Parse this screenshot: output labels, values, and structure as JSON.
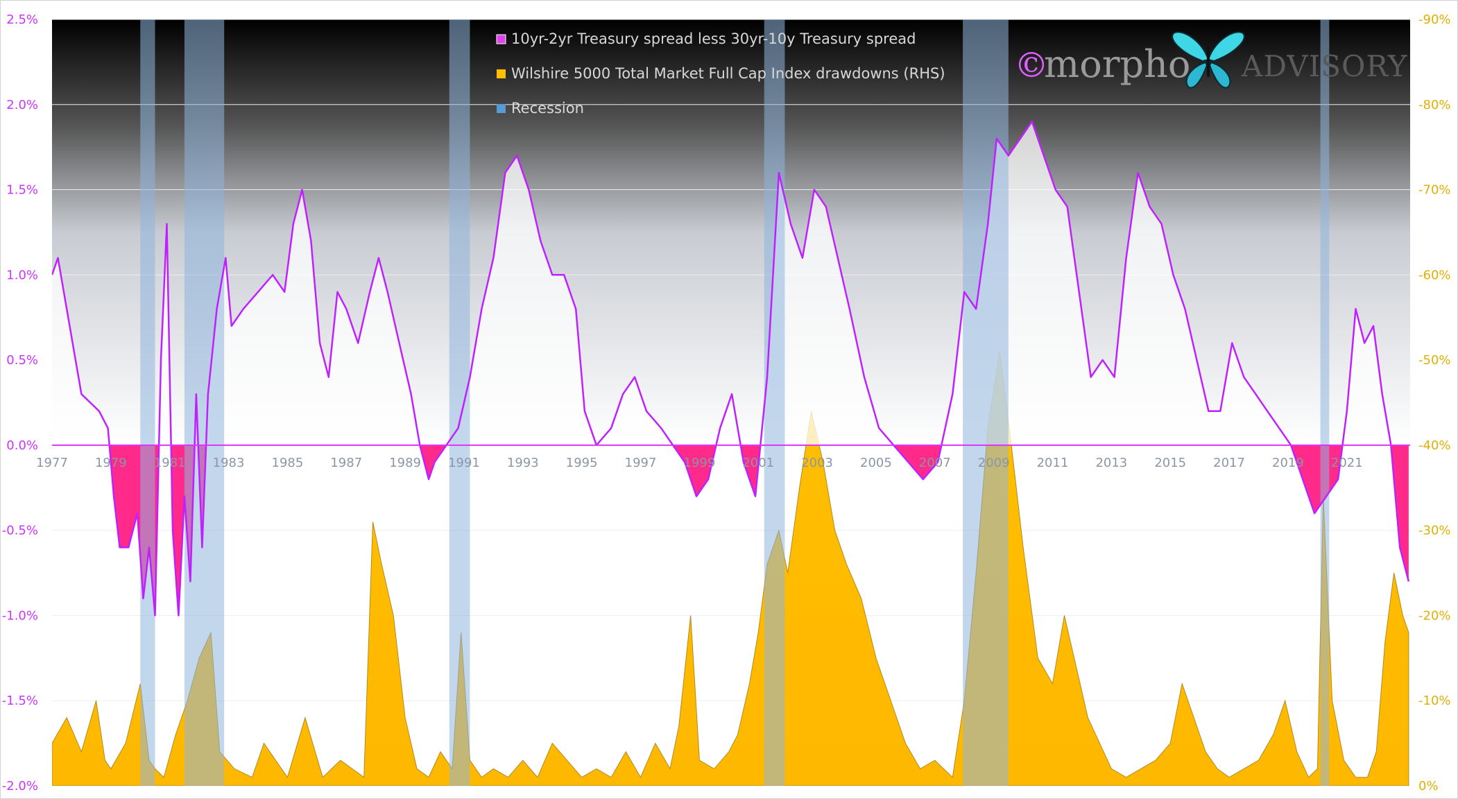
{
  "chart_data": {
    "type": "area",
    "title": "",
    "watermark": {
      "copyright": "©",
      "brand": "morpho",
      "suffix": "ADVISORY"
    },
    "legend": {
      "placement": "top-center",
      "items": [
        {
          "label": "10yr-2yr Treasury spread less 30yr-10y Treasury spread",
          "color": "#dd44ee"
        },
        {
          "label": "Wilshire 5000 Total Market Full Cap Index drawdowns (RHS)",
          "color": "#ffbf00"
        },
        {
          "label": "Recession",
          "color": "#5b9bd5"
        }
      ]
    },
    "x_axis": {
      "range": [
        1977,
        2023.15
      ],
      "tick_labels": [
        "1977",
        "1979",
        "1981",
        "1983",
        "1985",
        "1987",
        "1989",
        "1991",
        "1993",
        "1995",
        "1997",
        "1999",
        "2001",
        "2003",
        "2005",
        "2007",
        "2009",
        "2011",
        "2013",
        "2015",
        "2017",
        "2019",
        "2021"
      ]
    },
    "y_left": {
      "range": [
        -2.0,
        2.5
      ],
      "tick_labels": [
        "2.5%",
        "2.0%",
        "1.5%",
        "1.0%",
        "0.5%",
        "0.0%",
        "-0.5%",
        "-1.0%",
        "-1.5%",
        "-2.0%"
      ]
    },
    "y_right": {
      "range": [
        0,
        -90
      ],
      "tick_labels": [
        "-90%",
        "-80%",
        "-70%",
        "-60%",
        "-50%",
        "-40%",
        "-30%",
        "-20%",
        "-10%",
        "0%"
      ]
    },
    "grid": true,
    "colors": {
      "spread_line": "#c020ff",
      "negative_fill": "#ff2a8a",
      "positive_fill": "#ffffff",
      "drawdown_fill": "#ffbf00",
      "recession": "#8fb4dc",
      "zero_line": "#dd33ff"
    },
    "recessions": [
      [
        1980.0,
        1980.5
      ],
      [
        1981.5,
        1982.85
      ],
      [
        1990.5,
        1991.2
      ],
      [
        2001.2,
        2001.9
      ],
      [
        2007.95,
        2009.5
      ],
      [
        2020.1,
        2020.4
      ]
    ],
    "series": [
      {
        "name": "10yr-2yr Treasury spread less 30yr-10y Treasury spread",
        "axis": "left",
        "x": [
          1977.0,
          1977.2,
          1977.5,
          1977.8,
          1978.0,
          1978.3,
          1978.6,
          1978.9,
          1979.1,
          1979.3,
          1979.6,
          1979.9,
          1980.1,
          1980.3,
          1980.5,
          1980.7,
          1980.9,
          1981.1,
          1981.3,
          1981.5,
          1981.7,
          1981.9,
          1982.1,
          1982.3,
          1982.6,
          1982.9,
          1983.1,
          1983.5,
          1984.0,
          1984.5,
          1984.9,
          1985.2,
          1985.5,
          1985.8,
          1986.1,
          1986.4,
          1986.7,
          1987.0,
          1987.4,
          1987.8,
          1988.1,
          1988.4,
          1988.8,
          1989.2,
          1989.5,
          1989.8,
          1990.0,
          1990.4,
          1990.8,
          1991.2,
          1991.6,
          1992.0,
          1992.4,
          1992.8,
          1993.2,
          1993.6,
          1994.0,
          1994.4,
          1994.8,
          1995.1,
          1995.5,
          1996.0,
          1996.4,
          1996.8,
          1997.2,
          1997.7,
          1998.1,
          1998.5,
          1998.9,
          1999.3,
          1999.7,
          2000.1,
          2000.5,
          2000.9,
          2001.3,
          2001.7,
          2002.1,
          2002.5,
          2002.9,
          2003.3,
          2003.7,
          2004.1,
          2004.6,
          2005.1,
          2005.6,
          2006.1,
          2006.6,
          2007.1,
          2007.6,
          2008.0,
          2008.4,
          2008.8,
          2009.1,
          2009.5,
          2009.9,
          2010.3,
          2010.7,
          2011.1,
          2011.5,
          2011.9,
          2012.3,
          2012.7,
          2013.1,
          2013.5,
          2013.9,
          2014.3,
          2014.7,
          2015.1,
          2015.5,
          2015.9,
          2016.3,
          2016.7,
          2017.1,
          2017.5,
          2017.9,
          2018.3,
          2018.7,
          2019.1,
          2019.5,
          2019.9,
          2020.3,
          2020.7,
          2021.0,
          2021.3,
          2021.6,
          2021.9,
          2022.2,
          2022.5,
          2022.8,
          2023.1
        ],
        "y": [
          1.0,
          1.1,
          0.8,
          0.5,
          0.3,
          0.25,
          0.2,
          0.1,
          -0.3,
          -0.6,
          -0.6,
          -0.4,
          -0.9,
          -0.6,
          -1.0,
          0.5,
          1.3,
          -0.5,
          -1.0,
          -0.3,
          -0.8,
          0.3,
          -0.6,
          0.3,
          0.8,
          1.1,
          0.7,
          0.8,
          0.9,
          1.0,
          0.9,
          1.3,
          1.5,
          1.2,
          0.6,
          0.4,
          0.9,
          0.8,
          0.6,
          0.9,
          1.1,
          0.9,
          0.6,
          0.3,
          0.0,
          -0.2,
          -0.1,
          0.0,
          0.1,
          0.4,
          0.8,
          1.1,
          1.6,
          1.7,
          1.5,
          1.2,
          1.0,
          1.0,
          0.8,
          0.2,
          0.0,
          0.1,
          0.3,
          0.4,
          0.2,
          0.1,
          0.0,
          -0.1,
          -0.3,
          -0.2,
          0.1,
          0.3,
          -0.1,
          -0.3,
          0.4,
          1.6,
          1.3,
          1.1,
          1.5,
          1.4,
          1.1,
          0.8,
          0.4,
          0.1,
          0.0,
          -0.1,
          -0.2,
          -0.1,
          0.3,
          0.9,
          0.8,
          1.3,
          1.8,
          1.7,
          1.8,
          1.9,
          1.7,
          1.5,
          1.4,
          0.9,
          0.4,
          0.5,
          0.4,
          1.1,
          1.6,
          1.4,
          1.3,
          1.0,
          0.8,
          0.5,
          0.2,
          0.2,
          0.6,
          0.4,
          0.3,
          0.2,
          0.1,
          0.0,
          -0.2,
          -0.4,
          -0.3,
          -0.2,
          0.2,
          0.8,
          0.6,
          0.7,
          0.3,
          0.0,
          -0.6,
          -0.8
        ]
      },
      {
        "name": "Wilshire 5000 Total Market Full Cap Index drawdowns (RHS)",
        "axis": "right",
        "x": [
          1977.0,
          1977.5,
          1978.0,
          1978.5,
          1978.8,
          1979.0,
          1979.5,
          1980.0,
          1980.3,
          1980.5,
          1980.8,
          1981.2,
          1981.6,
          1982.0,
          1982.4,
          1982.7,
          1983.2,
          1983.8,
          1984.2,
          1984.6,
          1985.0,
          1985.6,
          1986.2,
          1986.8,
          1987.2,
          1987.6,
          1987.9,
          1988.2,
          1988.6,
          1989.0,
          1989.4,
          1989.8,
          1990.2,
          1990.6,
          1990.9,
          1991.2,
          1991.6,
          1992.0,
          1992.5,
          1993.0,
          1993.5,
          1994.0,
          1994.5,
          1995.0,
          1995.5,
          1996.0,
          1996.5,
          1997.0,
          1997.5,
          1998.0,
          1998.3,
          1998.7,
          1999.0,
          1999.5,
          2000.0,
          2000.3,
          2000.7,
          2001.0,
          2001.3,
          2001.7,
          2002.0,
          2002.4,
          2002.8,
          2003.2,
          2003.6,
          2004.0,
          2004.5,
          2005.0,
          2005.5,
          2006.0,
          2006.5,
          2007.0,
          2007.6,
          2008.0,
          2008.4,
          2008.8,
          2009.2,
          2009.6,
          2010.0,
          2010.5,
          2011.0,
          2011.4,
          2011.8,
          2012.2,
          2012.6,
          2013.0,
          2013.5,
          2014.0,
          2014.5,
          2015.0,
          2015.4,
          2015.8,
          2016.2,
          2016.6,
          2017.0,
          2017.5,
          2018.0,
          2018.5,
          2018.9,
          2019.3,
          2019.7,
          2020.0,
          2020.2,
          2020.5,
          2020.9,
          2021.3,
          2021.7,
          2022.0,
          2022.3,
          2022.6,
          2022.9,
          2023.1
        ],
        "y": [
          -5,
          -8,
          -4,
          -10,
          -3,
          -2,
          -5,
          -12,
          -3,
          -2,
          -1,
          -6,
          -10,
          -15,
          -18,
          -4,
          -2,
          -1,
          -5,
          -3,
          -1,
          -8,
          -1,
          -3,
          -2,
          -1,
          -31,
          -26,
          -20,
          -8,
          -2,
          -1,
          -4,
          -2,
          -18,
          -3,
          -1,
          -2,
          -1,
          -3,
          -1,
          -5,
          -3,
          -1,
          -2,
          -1,
          -4,
          -1,
          -5,
          -2,
          -7,
          -20,
          -3,
          -2,
          -4,
          -6,
          -12,
          -18,
          -26,
          -30,
          -25,
          -35,
          -44,
          -38,
          -30,
          -26,
          -22,
          -15,
          -10,
          -5,
          -2,
          -3,
          -1,
          -10,
          -25,
          -42,
          -51,
          -40,
          -28,
          -15,
          -12,
          -20,
          -14,
          -8,
          -5,
          -2,
          -1,
          -2,
          -3,
          -5,
          -12,
          -8,
          -4,
          -2,
          -1,
          -2,
          -3,
          -6,
          -10,
          -4,
          -1,
          -2,
          -34,
          -10,
          -3,
          -1,
          -1,
          -4,
          -17,
          -25,
          -20,
          -18
        ]
      }
    ]
  }
}
